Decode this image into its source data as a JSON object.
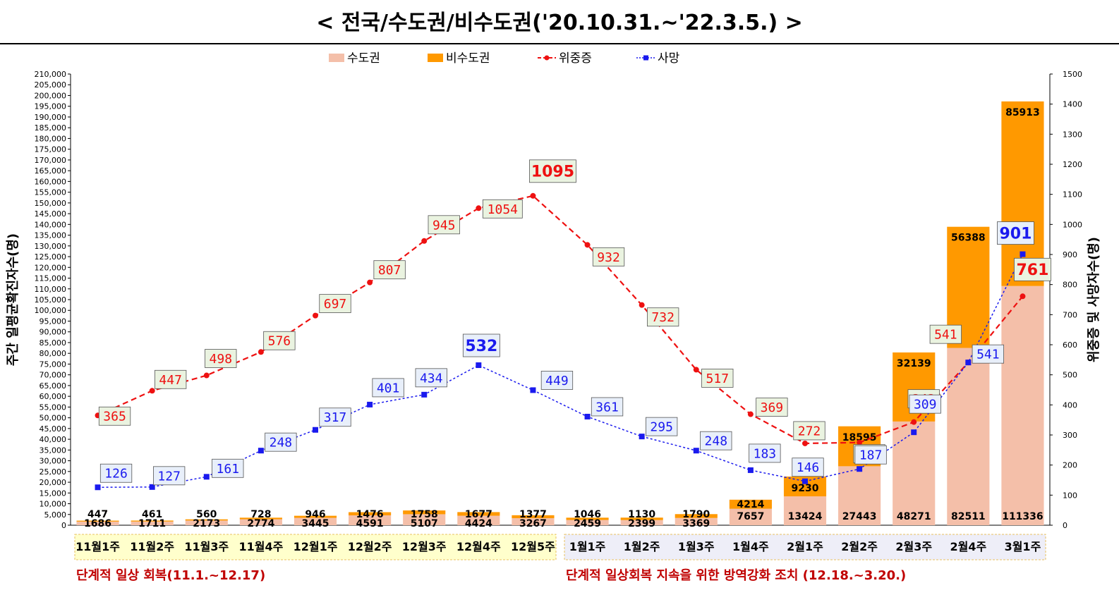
{
  "title": "< 전국/수도권/비수도권('20.10.31.~'22.3.5.) >",
  "colors": {
    "capital": "#f4bfa9",
    "noncapital": "#ff9900",
    "severe": "#ee1111",
    "death": "#1a1aee",
    "severe_box": "#eaf3e0",
    "death_box": "#e8effa",
    "period1_bg": "#ffffcc",
    "period2_bg": "#eeeef8",
    "period_text": "#c00000"
  },
  "chart_data": {
    "type": "bar",
    "stacked": true,
    "categories": [
      "11월1주",
      "11월2주",
      "11월3주",
      "11월4주",
      "12월1주",
      "12월2주",
      "12월3주",
      "12월4주",
      "12월5주",
      "1월1주",
      "1월2주",
      "1월3주",
      "1월4주",
      "2월1주",
      "2월2주",
      "2월3주",
      "2월4주",
      "3월1주"
    ],
    "series": [
      {
        "name": "수도권",
        "axis": "left",
        "kind": "bar",
        "values": [
          1686,
          1711,
          2173,
          2774,
          3445,
          4591,
          5107,
          4424,
          3267,
          2459,
          2399,
          3369,
          7657,
          13424,
          27443,
          48271,
          82511,
          111336
        ]
      },
      {
        "name": "비수도권",
        "axis": "left",
        "kind": "bar",
        "values": [
          447,
          461,
          560,
          728,
          946,
          1476,
          1758,
          1677,
          1377,
          1046,
          1130,
          1790,
          4214,
          9230,
          18595,
          32139,
          56388,
          85913
        ]
      },
      {
        "name": "위중증",
        "axis": "right",
        "kind": "line",
        "values": [
          365,
          447,
          498,
          576,
          697,
          807,
          945,
          1054,
          1095,
          932,
          732,
          517,
          369,
          272,
          275,
          343,
          541,
          761
        ]
      },
      {
        "name": "사망",
        "axis": "right",
        "kind": "line",
        "values": [
          126,
          127,
          161,
          248,
          317,
          401,
          434,
          532,
          449,
          361,
          295,
          248,
          183,
          146,
          187,
          309,
          541,
          901
        ]
      }
    ],
    "ylabel": "주간 일평균확진자수(명)",
    "y2label": "위중증 및 사망자수(명)",
    "ylim": [
      0,
      210000
    ],
    "ytick_step": 5000,
    "y2lim": [
      0,
      1500
    ],
    "y2tick_step": 100,
    "legend_position": "top-center",
    "grid": false
  },
  "periods": [
    {
      "label": "단계적 일상 회복(11.1.~12.17)",
      "start": 0,
      "end": 8
    },
    {
      "label": "단계적 일상회복 지속을 위한 방역강화 조치 (12.18.~3.20.)",
      "start": 9,
      "end": 17
    }
  ]
}
